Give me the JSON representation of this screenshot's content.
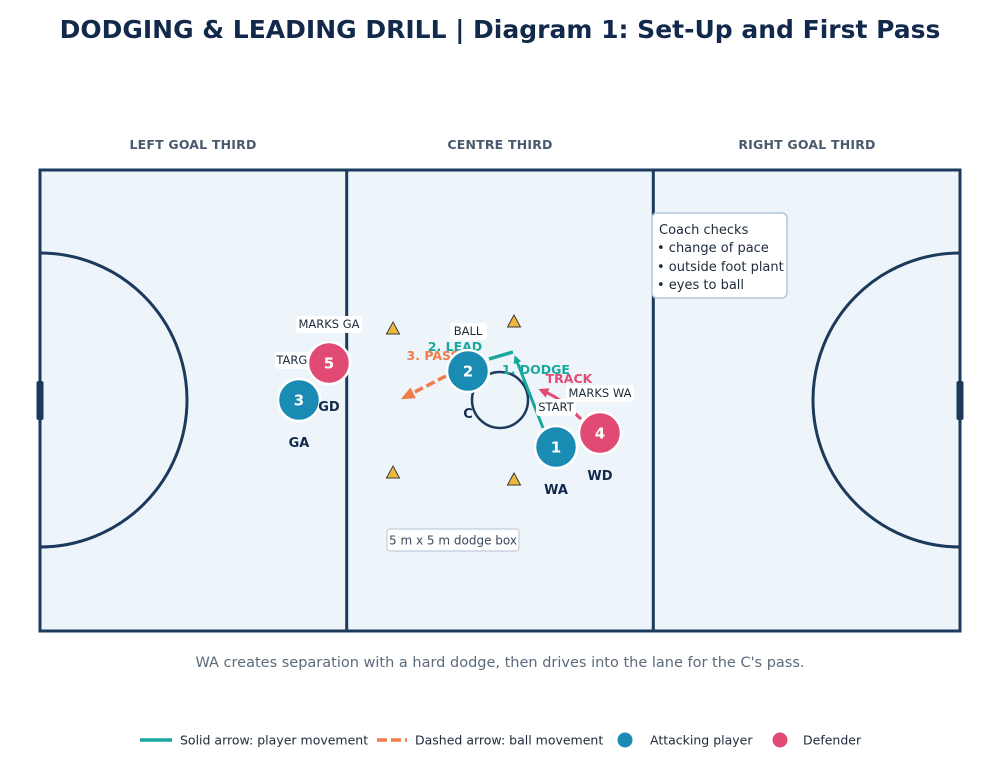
{
  "title": "DODGING & LEADING DRILL | Diagram 1: Set-Up and First Pass",
  "thirds": {
    "left": "LEFT GOAL THIRD",
    "centre": "CENTRE THIRD",
    "right": "RIGHT GOAL THIRD"
  },
  "coach_note": {
    "heading": "Coach checks",
    "items": [
      "• change of pace",
      "• outside foot plant",
      "• eyes to ball"
    ]
  },
  "players": {
    "wa": {
      "number": "1",
      "label": "WA",
      "team": "attack"
    },
    "c": {
      "number": "2",
      "label": "C",
      "team": "attack"
    },
    "ga": {
      "number": "3",
      "label": "GA",
      "team": "attack"
    },
    "wd": {
      "number": "4",
      "label": "WD",
      "team": "defence"
    },
    "gd": {
      "number": "5",
      "label": "GD",
      "team": "defence"
    }
  },
  "annotations": {
    "marks_ga": "MARKS GA",
    "target": "TARGET",
    "ball": "BALL",
    "start": "START",
    "marks_wa": "MARKS WA",
    "dodge_box": "5 m x 5 m dodge box"
  },
  "movements": {
    "dodge": "1. DODGE",
    "lead": "2. LEAD",
    "pass": "3. PASS",
    "track": "TRACK"
  },
  "caption": "WA creates separation with a hard dodge, then drives into the lane for the C's pass.",
  "legend": {
    "solid": "Solid arrow: player movement",
    "dashed": "Dashed arrow: ball movement",
    "attack": "Attacking player",
    "defence": "Defender"
  },
  "colors": {
    "court_fill": "#eef5fa",
    "court_line": "#1b3a5c",
    "attack": "#1a8cb4",
    "defence": "#e14b73",
    "movement": "#19a89e",
    "ball": "#f07c4a",
    "cone": "#f0b83c"
  }
}
